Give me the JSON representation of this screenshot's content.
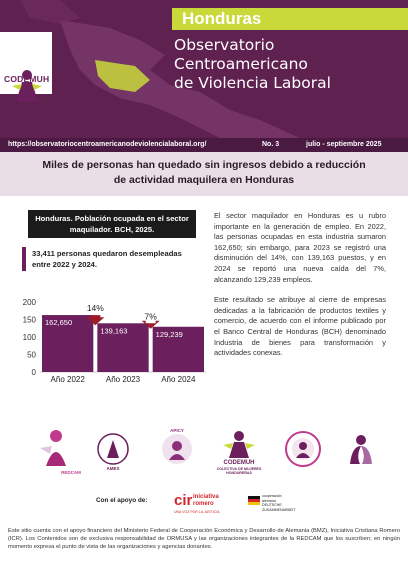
{
  "header": {
    "country": "Honduras",
    "title_line1": "Observatorio Centroamericano",
    "title_line2": "de Violencia Laboral",
    "logo_text": "CODEMUH"
  },
  "url_bar": {
    "url": "https://observatoriocentroamericanodeviolencialaboral.org/",
    "number": "No. 3",
    "period": "julio - septiembre 2025"
  },
  "headline": "Miles de personas han quedado sin ingresos debido a reducción de actividad maquilera en Honduras",
  "chart_title": "Honduras. Población ocupada en el sector maquilador. BCH, 2025.",
  "callout": "33,411 personas quedaron desempleadas entre 2022 y 2024.",
  "chart_data": {
    "type": "bar",
    "categories": [
      "Año 2022",
      "Año 2023",
      "Año 2024"
    ],
    "values": [
      162650,
      139163,
      129239
    ],
    "value_labels": [
      "162,650",
      "139,163",
      "129,239"
    ],
    "yticks": [
      "0",
      "50",
      "100",
      "150",
      "200"
    ],
    "ylim": [
      0,
      200000
    ],
    "annotations": [
      "14%",
      "7%"
    ],
    "bar_color": "#6b1f5c",
    "arrow_color": "#9b1d2a"
  },
  "body": {
    "p1": "El sector maquilador en Honduras es u rubro importante en la generación de empleo. En 2022, las personas ocupadas en esta industria sumaron 162,650; sin embargo, para 2023 se registró una disminución del 14%, con 139,163 puestos, y en 2024 se reportó una nueva caída del 7%, alcanzando 129,239 empleos.",
    "p2": "Este resultado se atribuye al cierre de empresas dedicadas a la fabricación de productos textiles y comercio, de acuerdo con el informe publicado por el Banco Central de Honduras (BCH) denominado Industria de bienes para transformación y actividades conexas."
  },
  "logos": {
    "redcam": "REDCAM",
    "ames": "AMES",
    "apicy": "APICY",
    "codemuh": "CODEMUH",
    "codemuh_sub": "COLECTIVA DE MUJERES HONDUREÑAS"
  },
  "support": {
    "label": "Con el apoyo de:",
    "icr_mark": "cir",
    "icr_name": "iniciativa romero",
    "icr_sub": "UNA VOZ POR LA JUSTICIA",
    "ger_line1": "cooperación",
    "ger_line2": "alemana",
    "ger_line3": "DEUTSCHE ZUSAMMENARBEIT"
  },
  "footer": "Este sitio cuenta con el apoyo financiero del Ministerio Federal de Cooperación Económica y Desarrollo de Alemania (BMZ), Iniciativa Cristiana Romero (ICR). Los Contenidos son de exclusiva responsabilidad de ORMUSA y las organizaciones integrantes de la REDCAM que los suscriben; en ningún momento expresa el punto de vista de las organizaciones y agencias donantes."
}
